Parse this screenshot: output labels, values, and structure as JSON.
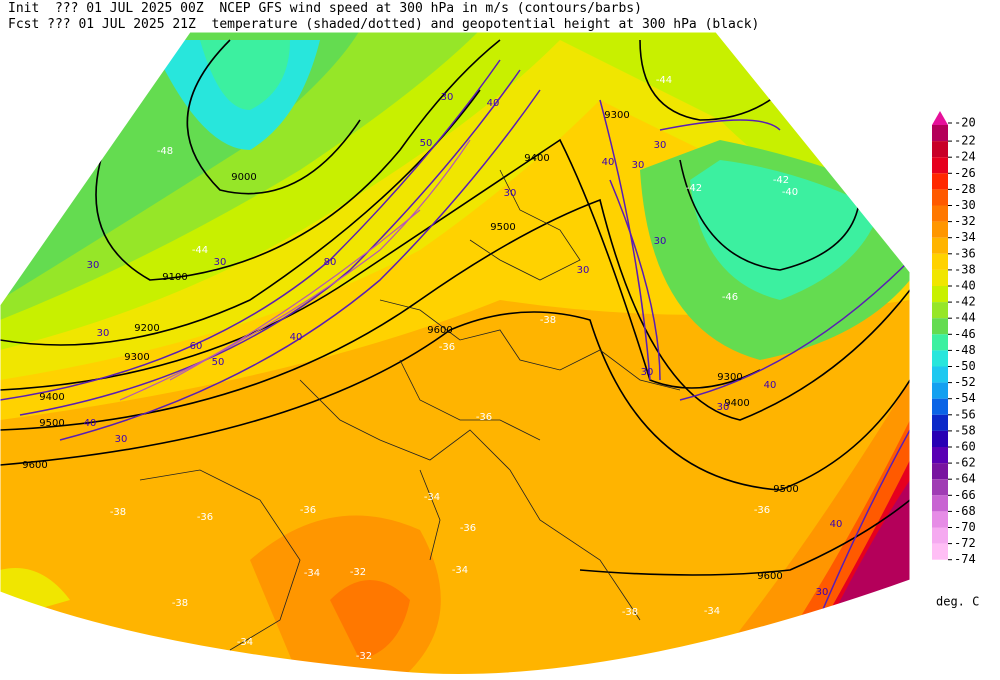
{
  "header": {
    "line1": "Init  ??? 01 JUL 2025 00Z  NCEP GFS wind speed at 300 hPa in m/s (contours/barbs)",
    "line2": "Fcst ??? 01 JUL 2025 21Z  temperature (shaded/dotted) and geopotential height at 300 hPa (black)"
  },
  "colorbar": {
    "levels": [
      -20,
      -22,
      -24,
      -26,
      -28,
      -30,
      -32,
      -34,
      -36,
      -38,
      -40,
      -42,
      -44,
      -46,
      -48,
      -50,
      -52,
      -54,
      -56,
      -58,
      -60,
      -62,
      -64,
      -66,
      -68,
      -70,
      -72,
      -74
    ],
    "colors": [
      "#e6109a",
      "#b4005a",
      "#c80028",
      "#e6001e",
      "#ff2800",
      "#ff5a00",
      "#ff7800",
      "#ff9600",
      "#ffb400",
      "#ffd200",
      "#f0e600",
      "#c8f000",
      "#96e628",
      "#64dc50",
      "#3cf0a0",
      "#28e6dc",
      "#1ec8f0",
      "#14a0f0",
      "#0a64e6",
      "#0a28c8",
      "#2800b4",
      "#5a00b4",
      "#7814a0",
      "#a03cb4",
      "#c864d2",
      "#e68ce6",
      "#f5aaf0",
      "#ffbef5"
    ],
    "unit": "deg. C"
  },
  "map_labels": {
    "height": [
      "9000",
      "9100",
      "9200",
      "9300",
      "9400",
      "9500",
      "9600",
      "9600",
      "9500",
      "9400",
      "9300",
      "9300",
      "9400",
      "9500",
      "9600"
    ],
    "temperature": [
      "-44",
      "-44",
      "-42",
      "-42",
      "-40",
      "-46",
      "-36",
      "-38",
      "-36",
      "-34",
      "-36",
      "-36",
      "-36",
      "-38",
      "-36",
      "-34",
      "-32",
      "-34",
      "-38",
      "-34",
      "-32",
      "-38",
      "-34",
      "-48"
    ],
    "wind": [
      "30",
      "30",
      "30",
      "30",
      "40",
      "40",
      "30",
      "30",
      "30",
      "30",
      "30",
      "40",
      "30",
      "40",
      "30",
      "40",
      "30",
      "40",
      "60",
      "50",
      "30",
      "80",
      "50"
    ]
  }
}
